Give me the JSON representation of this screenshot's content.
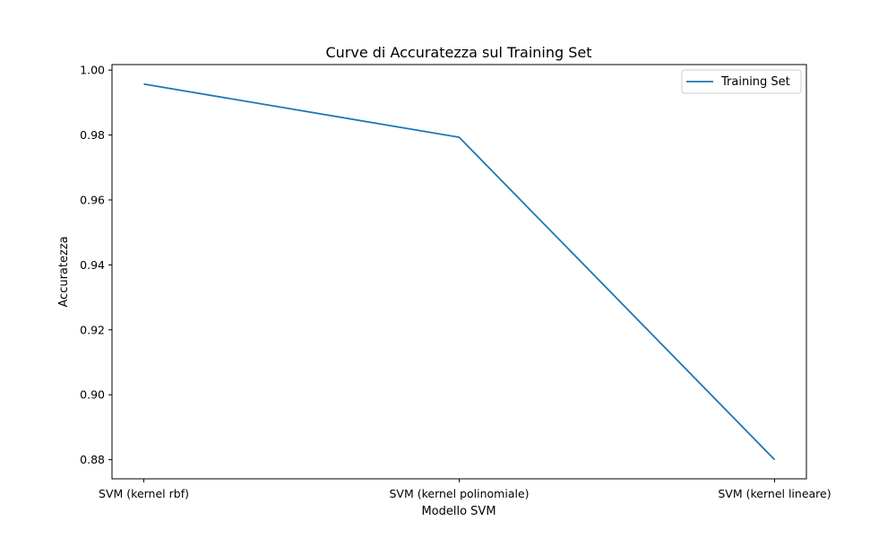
{
  "chart_data": {
    "type": "line",
    "title": "Curve di Accuratezza sul Training Set",
    "xlabel": "Modello SVM",
    "ylabel": "Accuratezza",
    "categories": [
      "SVM (kernel rbf)",
      "SVM (kernel polinomiale)",
      "SVM (kernel lineare)"
    ],
    "series": [
      {
        "name": "Training Set",
        "values": [
          0.9957,
          0.9793,
          0.88
        ]
      }
    ],
    "ylim": [
      0.8741,
      1.0017
    ],
    "yticks": [
      "0.88",
      "0.90",
      "0.92",
      "0.94",
      "0.96",
      "0.98",
      "1.00"
    ],
    "grid": false,
    "legend_position": "top-right",
    "colors": {
      "series": "#1f77b4"
    }
  }
}
